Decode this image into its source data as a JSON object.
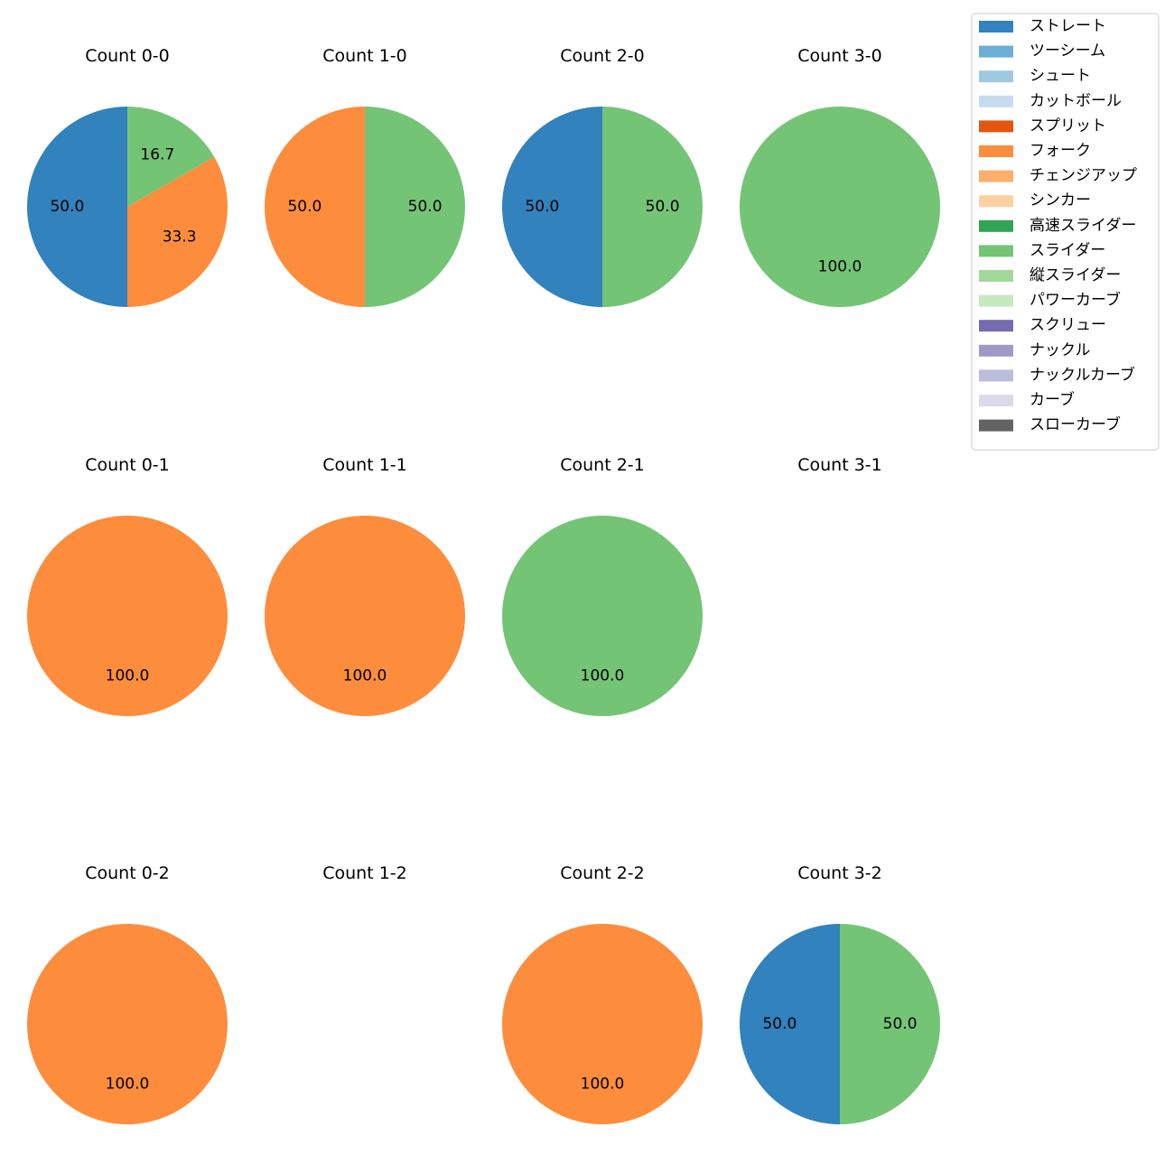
{
  "chart_data": {
    "type": "pie",
    "layout": "grid 3 rows x 4 columns",
    "legend": {
      "placement": "top-right",
      "entries": [
        {
          "label": "ストレート",
          "color": "#3182bd"
        },
        {
          "label": "ツーシーム",
          "color": "#6baed6"
        },
        {
          "label": "シュート",
          "color": "#9ecae1"
        },
        {
          "label": "カットボール",
          "color": "#c6dbef"
        },
        {
          "label": "スプリット",
          "color": "#e6550d"
        },
        {
          "label": "フォーク",
          "color": "#fd8d3c"
        },
        {
          "label": "チェンジアップ",
          "color": "#fdae6b"
        },
        {
          "label": "シンカー",
          "color": "#fdd0a2"
        },
        {
          "label": "高速スライダー",
          "color": "#31a354"
        },
        {
          "label": "スライダー",
          "color": "#74c476"
        },
        {
          "label": "縦スライダー",
          "color": "#a1d99b"
        },
        {
          "label": "パワーカーブ",
          "color": "#c7e9c0"
        },
        {
          "label": "スクリュー",
          "color": "#756bb1"
        },
        {
          "label": "ナックル",
          "color": "#9e9ac8"
        },
        {
          "label": "ナックルカーブ",
          "color": "#bcbddc"
        },
        {
          "label": "カーブ",
          "color": "#dadaeb"
        },
        {
          "label": "スローカーブ",
          "color": "#636363"
        }
      ]
    },
    "panels": [
      {
        "title": "Count 0-0",
        "slices": [
          {
            "pitch": "ストレート",
            "value": 50.0,
            "label": "50.0"
          },
          {
            "pitch": "フォーク",
            "value": 33.3,
            "label": "33.3"
          },
          {
            "pitch": "スライダー",
            "value": 16.7,
            "label": "16.7"
          }
        ]
      },
      {
        "title": "Count 1-0",
        "slices": [
          {
            "pitch": "フォーク",
            "value": 50.0,
            "label": "50.0"
          },
          {
            "pitch": "スライダー",
            "value": 50.0,
            "label": "50.0"
          }
        ]
      },
      {
        "title": "Count 2-0",
        "slices": [
          {
            "pitch": "ストレート",
            "value": 50.0,
            "label": "50.0"
          },
          {
            "pitch": "スライダー",
            "value": 50.0,
            "label": "50.0"
          }
        ]
      },
      {
        "title": "Count 3-0",
        "slices": [
          {
            "pitch": "スライダー",
            "value": 100.0,
            "label": "100.0"
          }
        ]
      },
      {
        "title": "Count 0-1",
        "slices": [
          {
            "pitch": "フォーク",
            "value": 100.0,
            "label": "100.0"
          }
        ]
      },
      {
        "title": "Count 1-1",
        "slices": [
          {
            "pitch": "フォーク",
            "value": 100.0,
            "label": "100.0"
          }
        ]
      },
      {
        "title": "Count 2-1",
        "slices": [
          {
            "pitch": "スライダー",
            "value": 100.0,
            "label": "100.0"
          }
        ]
      },
      {
        "title": "Count 3-1",
        "slices": []
      },
      {
        "title": "Count 0-2",
        "slices": [
          {
            "pitch": "フォーク",
            "value": 100.0,
            "label": "100.0"
          }
        ]
      },
      {
        "title": "Count 1-2",
        "slices": []
      },
      {
        "title": "Count 2-2",
        "slices": [
          {
            "pitch": "フォーク",
            "value": 100.0,
            "label": "100.0"
          }
        ]
      },
      {
        "title": "Count 3-2",
        "slices": [
          {
            "pitch": "ストレート",
            "value": 50.0,
            "label": "50.0"
          },
          {
            "pitch": "スライダー",
            "value": 50.0,
            "label": "50.0"
          }
        ]
      }
    ]
  }
}
